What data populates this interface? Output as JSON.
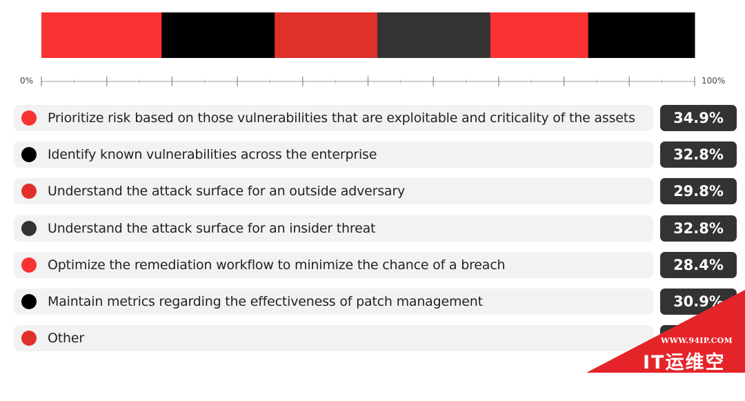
{
  "chart_data": {
    "type": "bar",
    "stacked_bar_colors": [
      "#f93232",
      "#000000",
      "#e0302a",
      "#333333",
      "#f93232",
      "#000000",
      "#e0302a"
    ],
    "axis": {
      "min_label": "0%",
      "max_label": "100%"
    },
    "series": [
      {
        "label": "Prioritize risk based on those vulnerabilities that are exploitable and criticality of the assets",
        "value": 34.9,
        "value_label": "34.9%",
        "color": "#f93232"
      },
      {
        "label": "Identify known vulnerabilities across the enterprise",
        "value": 32.8,
        "value_label": "32.8%",
        "color": "#000000"
      },
      {
        "label": "Understand the attack surface for an outside adversary",
        "value": 29.8,
        "value_label": "29.8%",
        "color": "#e0302a"
      },
      {
        "label": "Understand the attack surface for an insider threat",
        "value": 32.8,
        "value_label": "32.8%",
        "color": "#333333"
      },
      {
        "label": "Optimize the remediation workflow to minimize the chance of a breach",
        "value": 28.4,
        "value_label": "28.4%",
        "color": "#f93232"
      },
      {
        "label": "Maintain metrics regarding the effectiveness of patch management",
        "value": 30.9,
        "value_label": "30.9%",
        "color": "#000000"
      },
      {
        "label": "Other",
        "value": null,
        "value_label": "",
        "color": "#e0302a"
      }
    ]
  },
  "watermark": {
    "url": "WWW.94IP.COM",
    "brand": "IT运维空间",
    "color": "#e5242a"
  }
}
